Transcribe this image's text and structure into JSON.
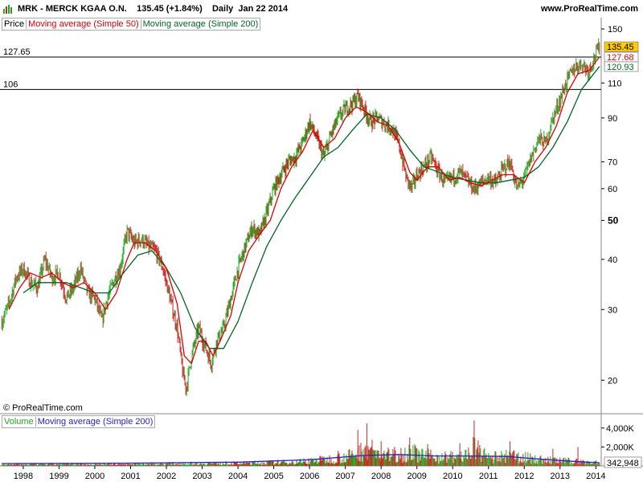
{
  "header": {
    "symbol": "MRK - MERCK KGAA O.N.",
    "price_change": "135.45 (+1.84%)",
    "period_date": "Daily  Jan 22 2014",
    "site": "www.ProRealTime.com"
  },
  "legend": {
    "price": "Price",
    "ma50": "Moving average (Simple 50)",
    "ma200": "Moving average (Simple 200)",
    "volume": "Volume",
    "vol_ma": "Moving average (Simple 200)"
  },
  "copyright": "© ProRealTime.com",
  "colors": {
    "up": "#22aa22",
    "down": "#cc2222",
    "ma50": "#dd0000",
    "ma200": "#006622",
    "vol_ma": "#2222cc",
    "current_label_bg": "#ffcc00"
  },
  "chart_data": [
    {
      "type": "line",
      "scale": "log",
      "ylim": [
        16.5,
        160
      ],
      "x_ticks": [
        "1998",
        "1999",
        "2000",
        "2001",
        "2002",
        "2003",
        "2004",
        "2005",
        "2006",
        "2007",
        "2008",
        "2009",
        "2010",
        "2011",
        "2012",
        "2013",
        "2014"
      ],
      "x_range": [
        1997.35,
        2014.15
      ],
      "y_ticks": [
        {
          "value": 150,
          "label": "150",
          "bold": false
        },
        {
          "value": 110,
          "label": "110",
          "bold": false
        },
        {
          "value": 90,
          "label": "90",
          "bold": false
        },
        {
          "value": 70,
          "label": "70",
          "bold": false
        },
        {
          "value": 60,
          "label": "60",
          "bold": false
        },
        {
          "value": 50,
          "label": "50",
          "bold": true
        },
        {
          "value": 40,
          "label": "40",
          "bold": false
        },
        {
          "value": 30,
          "label": "30",
          "bold": false
        },
        {
          "value": 20,
          "label": "20",
          "bold": false
        }
      ],
      "hlines": [
        {
          "value": 127.65,
          "label": "127.65"
        },
        {
          "value": 106,
          "label": "106"
        }
      ],
      "current_labels": [
        {
          "value": 135.45,
          "label": "135.45",
          "series": "price"
        },
        {
          "value": 127.68,
          "label": "127.68",
          "series": "ma50"
        },
        {
          "value": 120.93,
          "label": "120.93",
          "series": "ma200"
        }
      ],
      "price": [
        [
          1997.4,
          28
        ],
        [
          1997.6,
          31
        ],
        [
          1997.8,
          36
        ],
        [
          1998.0,
          38
        ],
        [
          1998.2,
          35
        ],
        [
          1998.4,
          34
        ],
        [
          1998.6,
          40
        ],
        [
          1998.8,
          36
        ],
        [
          1999.0,
          37
        ],
        [
          1999.2,
          32
        ],
        [
          1999.4,
          34
        ],
        [
          1999.6,
          38
        ],
        [
          1999.8,
          33
        ],
        [
          2000.0,
          32
        ],
        [
          2000.2,
          28
        ],
        [
          2000.3,
          31
        ],
        [
          2000.5,
          35
        ],
        [
          2000.7,
          38
        ],
        [
          2000.9,
          47
        ],
        [
          2001.1,
          44
        ],
        [
          2001.3,
          45
        ],
        [
          2001.5,
          43
        ],
        [
          2001.7,
          42
        ],
        [
          2001.9,
          38
        ],
        [
          2002.1,
          32
        ],
        [
          2002.3,
          27
        ],
        [
          2002.45,
          21
        ],
        [
          2002.55,
          19
        ],
        [
          2002.7,
          23
        ],
        [
          2002.9,
          27
        ],
        [
          2003.1,
          24
        ],
        [
          2003.25,
          22
        ],
        [
          2003.4,
          25
        ],
        [
          2003.6,
          27
        ],
        [
          2003.8,
          32
        ],
        [
          2004.0,
          38
        ],
        [
          2004.2,
          43
        ],
        [
          2004.4,
          48
        ],
        [
          2004.6,
          46
        ],
        [
          2004.8,
          52
        ],
        [
          2005.0,
          60
        ],
        [
          2005.2,
          65
        ],
        [
          2005.4,
          70
        ],
        [
          2005.6,
          72
        ],
        [
          2005.8,
          78
        ],
        [
          2006.0,
          88
        ],
        [
          2006.2,
          80
        ],
        [
          2006.4,
          72
        ],
        [
          2006.6,
          82
        ],
        [
          2006.8,
          90
        ],
        [
          2007.0,
          95
        ],
        [
          2007.2,
          98
        ],
        [
          2007.35,
          102
        ],
        [
          2007.5,
          96
        ],
        [
          2007.7,
          88
        ],
        [
          2007.9,
          90
        ],
        [
          2008.1,
          87
        ],
        [
          2008.3,
          85
        ],
        [
          2008.5,
          77
        ],
        [
          2008.7,
          64
        ],
        [
          2008.85,
          60
        ],
        [
          2009.0,
          65
        ],
        [
          2009.2,
          68
        ],
        [
          2009.4,
          72
        ],
        [
          2009.6,
          66
        ],
        [
          2009.8,
          62
        ],
        [
          2010.0,
          64
        ],
        [
          2010.2,
          66
        ],
        [
          2010.4,
          63
        ],
        [
          2010.6,
          60
        ],
        [
          2010.8,
          62
        ],
        [
          2011.0,
          64
        ],
        [
          2011.2,
          62
        ],
        [
          2011.4,
          67
        ],
        [
          2011.6,
          70
        ],
        [
          2011.8,
          60
        ],
        [
          2012.0,
          64
        ],
        [
          2012.2,
          72
        ],
        [
          2012.4,
          80
        ],
        [
          2012.6,
          78
        ],
        [
          2012.8,
          90
        ],
        [
          2013.0,
          100
        ],
        [
          2013.2,
          112
        ],
        [
          2013.4,
          120
        ],
        [
          2013.6,
          123
        ],
        [
          2013.8,
          118
        ],
        [
          2014.0,
          130
        ],
        [
          2014.1,
          135.45
        ]
      ],
      "ma50": [
        [
          1997.6,
          30
        ],
        [
          1997.9,
          34
        ],
        [
          1998.2,
          37
        ],
        [
          1998.5,
          36
        ],
        [
          1998.8,
          37
        ],
        [
          1999.1,
          35
        ],
        [
          1999.4,
          34
        ],
        [
          1999.7,
          35
        ],
        [
          2000.0,
          33
        ],
        [
          2000.3,
          30
        ],
        [
          2000.6,
          33
        ],
        [
          2000.9,
          40
        ],
        [
          2001.1,
          44
        ],
        [
          2001.4,
          44
        ],
        [
          2001.7,
          42
        ],
        [
          2002.0,
          38
        ],
        [
          2002.3,
          31
        ],
        [
          2002.5,
          23
        ],
        [
          2002.7,
          22
        ],
        [
          2002.9,
          25
        ],
        [
          2003.1,
          25
        ],
        [
          2003.3,
          23
        ],
        [
          2003.5,
          25
        ],
        [
          2003.8,
          29
        ],
        [
          2004.0,
          35
        ],
        [
          2004.3,
          42
        ],
        [
          2004.6,
          46
        ],
        [
          2004.9,
          50
        ],
        [
          2005.2,
          60
        ],
        [
          2005.5,
          68
        ],
        [
          2005.8,
          74
        ],
        [
          2006.1,
          84
        ],
        [
          2006.4,
          76
        ],
        [
          2006.7,
          80
        ],
        [
          2007.0,
          90
        ],
        [
          2007.3,
          96
        ],
        [
          2007.6,
          93
        ],
        [
          2007.9,
          88
        ],
        [
          2008.2,
          86
        ],
        [
          2008.5,
          78
        ],
        [
          2008.8,
          66
        ],
        [
          2009.0,
          63
        ],
        [
          2009.3,
          68
        ],
        [
          2009.6,
          68
        ],
        [
          2009.9,
          63
        ],
        [
          2010.2,
          64
        ],
        [
          2010.5,
          62
        ],
        [
          2010.8,
          61
        ],
        [
          2011.1,
          63
        ],
        [
          2011.4,
          65
        ],
        [
          2011.7,
          65
        ],
        [
          2012.0,
          62
        ],
        [
          2012.3,
          70
        ],
        [
          2012.6,
          76
        ],
        [
          2012.9,
          86
        ],
        [
          2013.2,
          104
        ],
        [
          2013.5,
          116
        ],
        [
          2013.8,
          118
        ],
        [
          2014.1,
          127.68
        ]
      ],
      "ma200": [
        [
          1998.0,
          33
        ],
        [
          1998.4,
          35
        ],
        [
          1998.8,
          35
        ],
        [
          1999.2,
          35
        ],
        [
          1999.6,
          34
        ],
        [
          2000.0,
          33
        ],
        [
          2000.4,
          33
        ],
        [
          2000.8,
          37
        ],
        [
          2001.2,
          41
        ],
        [
          2001.6,
          42
        ],
        [
          2002.0,
          38
        ],
        [
          2002.4,
          33
        ],
        [
          2002.8,
          27
        ],
        [
          2003.2,
          24
        ],
        [
          2003.6,
          24
        ],
        [
          2004.0,
          28
        ],
        [
          2004.4,
          35
        ],
        [
          2004.8,
          43
        ],
        [
          2005.2,
          50
        ],
        [
          2005.6,
          57
        ],
        [
          2006.0,
          64
        ],
        [
          2006.4,
          72
        ],
        [
          2006.8,
          76
        ],
        [
          2007.2,
          84
        ],
        [
          2007.6,
          92
        ],
        [
          2008.0,
          90
        ],
        [
          2008.4,
          84
        ],
        [
          2008.8,
          75
        ],
        [
          2009.2,
          68
        ],
        [
          2009.6,
          66
        ],
        [
          2010.0,
          64
        ],
        [
          2010.4,
          63
        ],
        [
          2010.8,
          62
        ],
        [
          2011.2,
          62
        ],
        [
          2011.6,
          63
        ],
        [
          2012.0,
          64
        ],
        [
          2012.4,
          68
        ],
        [
          2012.8,
          76
        ],
        [
          2013.2,
          88
        ],
        [
          2013.6,
          106
        ],
        [
          2014.1,
          120.93
        ]
      ]
    },
    {
      "type": "bar",
      "ylim": [
        0,
        5000000
      ],
      "y_ticks": [
        {
          "value": 4000000,
          "label": "4,000K"
        },
        {
          "value": 2000000,
          "label": "2,000K"
        }
      ],
      "current_label": "342,948",
      "volume_envelope": [
        [
          1997.4,
          300000
        ],
        [
          2000.0,
          350000
        ],
        [
          2002.5,
          450000
        ],
        [
          2004.0,
          500000
        ],
        [
          2005.5,
          700000
        ],
        [
          2006.5,
          1200000
        ],
        [
          2007.3,
          2000000
        ],
        [
          2007.6,
          3500000
        ],
        [
          2008.0,
          1800000
        ],
        [
          2008.8,
          2500000
        ],
        [
          2009.5,
          1600000
        ],
        [
          2010.3,
          1700000
        ],
        [
          2010.6,
          3200000
        ],
        [
          2011.0,
          1500000
        ],
        [
          2011.7,
          1800000
        ],
        [
          2012.5,
          1100000
        ],
        [
          2013.5,
          800000
        ],
        [
          2014.1,
          600000
        ]
      ],
      "spikes": [
        [
          2006.8,
          1600000
        ],
        [
          2007.35,
          3800000
        ],
        [
          2007.6,
          4500000
        ],
        [
          2008.0,
          2600000
        ],
        [
          2008.8,
          3000000
        ],
        [
          2009.3,
          2300000
        ],
        [
          2010.2,
          2400000
        ],
        [
          2010.6,
          4800000
        ],
        [
          2011.6,
          2600000
        ],
        [
          2012.8,
          1800000
        ],
        [
          2013.5,
          2000000
        ]
      ],
      "vol_ma": [
        [
          1997.4,
          250000
        ],
        [
          2001.0,
          300000
        ],
        [
          2004.0,
          400000
        ],
        [
          2006.0,
          650000
        ],
        [
          2007.5,
          1100000
        ],
        [
          2008.5,
          1200000
        ],
        [
          2009.5,
          1050000
        ],
        [
          2010.5,
          1050000
        ],
        [
          2011.5,
          1000000
        ],
        [
          2012.5,
          700000
        ],
        [
          2013.5,
          450000
        ],
        [
          2014.1,
          342948
        ]
      ]
    }
  ]
}
